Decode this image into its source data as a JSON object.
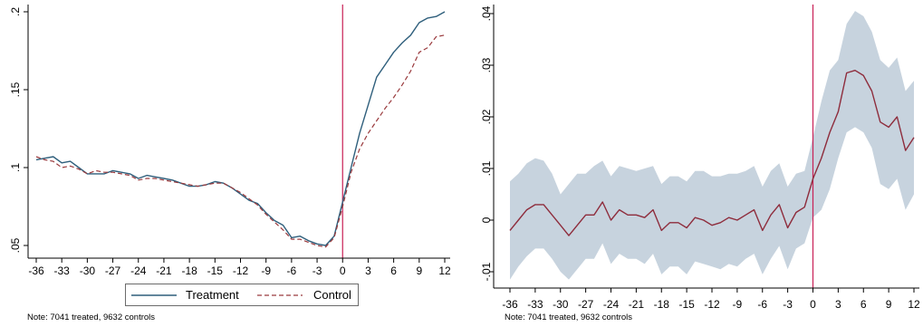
{
  "legend": {
    "treatment": "Treatment",
    "control": "Control"
  },
  "notes": {
    "left": "Note: 7041 treated, 9632 controls",
    "right": "Note: 7041 treated, 9632 controls"
  },
  "colors": {
    "treatment": "#2f5f7c",
    "control": "#9a3a3d",
    "vline": "#c81f55",
    "estimate": "#8e2c3c",
    "ci_band": "#c7d3de",
    "axis": "#000000",
    "legend_border": "#6b6b6b"
  },
  "chart_data": [
    {
      "type": "line",
      "title": "",
      "xlabel": "",
      "ylabel": "",
      "x": [
        -36,
        -35,
        -34,
        -33,
        -32,
        -31,
        -30,
        -29,
        -28,
        -27,
        -26,
        -25,
        -24,
        -23,
        -22,
        -21,
        -20,
        -19,
        -18,
        -17,
        -16,
        -15,
        -14,
        -13,
        -12,
        -11,
        -10,
        -9,
        -8,
        -7,
        -6,
        -5,
        -4,
        -3,
        -2,
        -1,
        0,
        1,
        2,
        3,
        4,
        5,
        6,
        7,
        8,
        9,
        10,
        11,
        12
      ],
      "xticks": [
        -36,
        -33,
        -30,
        -27,
        -24,
        -21,
        -18,
        -15,
        -12,
        -9,
        -6,
        -3,
        0,
        3,
        6,
        9,
        12
      ],
      "xtick_labels": [
        "-36",
        "-33",
        "-30",
        "-27",
        "-24",
        "-21",
        "-18",
        "-15",
        "-12",
        "-9",
        "-6",
        "-3",
        "0",
        "3",
        "6",
        "9",
        "12"
      ],
      "yticks": [
        0.05,
        0.1,
        0.15,
        0.2
      ],
      "ytick_labels": [
        ".05",
        ".1",
        ".15",
        ".2"
      ],
      "ylim": [
        0.045,
        0.205
      ],
      "xlim": [
        -36,
        12
      ],
      "vline_x": 0,
      "grid": false,
      "legend_placement": "bottom",
      "series": [
        {
          "name": "Treatment",
          "style": "solid",
          "values": [
            0.105,
            0.106,
            0.107,
            0.103,
            0.104,
            0.1,
            0.096,
            0.096,
            0.096,
            0.098,
            0.097,
            0.096,
            0.093,
            0.095,
            0.094,
            0.093,
            0.092,
            0.09,
            0.088,
            0.088,
            0.089,
            0.091,
            0.09,
            0.087,
            0.083,
            0.079,
            0.077,
            0.071,
            0.066,
            0.063,
            0.055,
            0.056,
            0.053,
            0.051,
            0.05,
            0.056,
            0.078,
            0.1,
            0.122,
            0.14,
            0.158,
            0.166,
            0.174,
            0.18,
            0.185,
            0.193,
            0.196,
            0.197,
            0.2
          ]
        },
        {
          "name": "Control",
          "style": "dashed",
          "values": [
            0.107,
            0.105,
            0.104,
            0.1,
            0.101,
            0.099,
            0.096,
            0.098,
            0.097,
            0.097,
            0.096,
            0.095,
            0.092,
            0.093,
            0.093,
            0.092,
            0.091,
            0.09,
            0.089,
            0.088,
            0.089,
            0.09,
            0.09,
            0.087,
            0.084,
            0.08,
            0.076,
            0.07,
            0.065,
            0.06,
            0.054,
            0.054,
            0.052,
            0.05,
            0.049,
            0.055,
            0.075,
            0.097,
            0.112,
            0.122,
            0.13,
            0.138,
            0.145,
            0.153,
            0.162,
            0.174,
            0.177,
            0.184,
            0.185
          ]
        }
      ]
    },
    {
      "type": "line",
      "title": "",
      "xlabel": "",
      "ylabel": "",
      "x": [
        -36,
        -35,
        -34,
        -33,
        -32,
        -31,
        -30,
        -29,
        -28,
        -27,
        -26,
        -25,
        -24,
        -23,
        -22,
        -21,
        -20,
        -19,
        -18,
        -17,
        -16,
        -15,
        -14,
        -13,
        -12,
        -11,
        -10,
        -9,
        -8,
        -7,
        -6,
        -5,
        -4,
        -3,
        -2,
        -1,
        0,
        1,
        2,
        3,
        4,
        5,
        6,
        7,
        8,
        9,
        10,
        11,
        12
      ],
      "xticks": [
        -36,
        -33,
        -30,
        -27,
        -24,
        -21,
        -18,
        -15,
        -12,
        -9,
        -6,
        -3,
        0,
        3,
        6,
        9,
        12
      ],
      "xtick_labels": [
        "-36",
        "-33",
        "-30",
        "-27",
        "-24",
        "-21",
        "-18",
        "-15",
        "-12",
        "-9",
        "-6",
        "-3",
        "0",
        "3",
        "6",
        "9",
        "12"
      ],
      "yticks": [
        -0.01,
        0,
        0.01,
        0.02,
        0.03,
        0.04
      ],
      "ytick_labels": [
        "-.01",
        "0",
        ".01",
        ".02",
        ".03",
        ".04"
      ],
      "ylim": [
        -0.012,
        0.042
      ],
      "xlim": [
        -36,
        12
      ],
      "vline_x": 0,
      "grid": false,
      "series": [
        {
          "style": "solid",
          "values": [
            -0.002,
            0.0,
            0.002,
            0.003,
            0.003,
            0.001,
            -0.001,
            -0.003,
            -0.001,
            0.001,
            0.001,
            0.0035,
            0.0,
            0.002,
            0.001,
            0.001,
            0.0005,
            0.002,
            -0.002,
            -0.0005,
            -0.0005,
            -0.0015,
            0.0005,
            0.0,
            -0.001,
            -0.0005,
            0.0005,
            0.0,
            0.001,
            0.002,
            -0.002,
            0.001,
            0.003,
            -0.0015,
            0.0015,
            0.0025,
            0.008,
            0.012,
            0.017,
            0.021,
            0.0285,
            0.029,
            0.028,
            0.025,
            0.019,
            0.018,
            0.02,
            0.0135,
            0.016
          ],
          "ci_upper": [
            0.0075,
            0.009,
            0.011,
            0.012,
            0.0115,
            0.009,
            0.005,
            0.007,
            0.009,
            0.009,
            0.0105,
            0.0115,
            0.0085,
            0.0105,
            0.01,
            0.0095,
            0.01,
            0.0105,
            0.007,
            0.0085,
            0.0085,
            0.0075,
            0.0095,
            0.0095,
            0.0085,
            0.0085,
            0.009,
            0.009,
            0.0095,
            0.0105,
            0.0065,
            0.0095,
            0.011,
            0.0065,
            0.009,
            0.0095,
            0.016,
            0.023,
            0.029,
            0.031,
            0.038,
            0.0405,
            0.0395,
            0.0365,
            0.031,
            0.0295,
            0.0315,
            0.025,
            0.027
          ],
          "ci_lower": [
            -0.0115,
            -0.009,
            -0.007,
            -0.0055,
            -0.0055,
            -0.0075,
            -0.01,
            -0.0115,
            -0.0095,
            -0.0075,
            -0.0075,
            -0.0045,
            -0.0085,
            -0.0065,
            -0.0075,
            -0.0075,
            -0.0085,
            -0.0065,
            -0.0105,
            -0.009,
            -0.009,
            -0.0105,
            -0.008,
            -0.0085,
            -0.009,
            -0.0095,
            -0.0085,
            -0.009,
            -0.0075,
            -0.0065,
            -0.0105,
            -0.0075,
            -0.005,
            -0.0095,
            -0.0055,
            -0.0045,
            0.0005,
            0.002,
            0.006,
            0.012,
            0.017,
            0.018,
            0.017,
            0.014,
            0.007,
            0.006,
            0.008,
            0.002,
            0.005
          ]
        }
      ]
    }
  ]
}
